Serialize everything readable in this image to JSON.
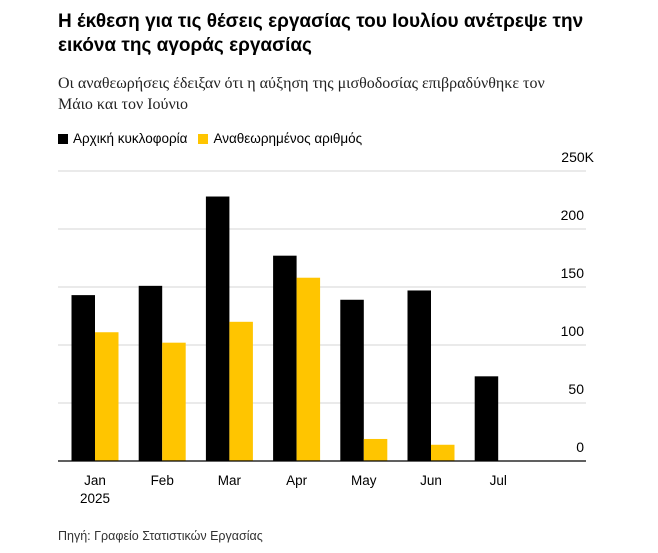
{
  "chart_data": {
    "type": "bar",
    "title": "Η έκθεση για τις θέσεις εργασίας του Ιουλίου ανέτρεψε την εικόνα της αγοράς εργασίας",
    "subtitle": "Οι αναθεωρήσεις έδειξαν ότι η αύξηση της μισθοδοσίας επιβραδύνθηκε τον Μάιο και τον Ιούνιο",
    "source": "Πηγή: Γραφείο Στατιστικών Εργασίας",
    "categories": [
      "Jan",
      "Feb",
      "Mar",
      "Apr",
      "May",
      "Jun",
      "Jul"
    ],
    "category_sublabels": [
      "2025",
      "",
      "",
      "",
      "",
      "",
      ""
    ],
    "series": [
      {
        "name": "Αρχική κυκλοφορία",
        "color": "#000000",
        "values": [
          143,
          151,
          228,
          177,
          139,
          147,
          73
        ]
      },
      {
        "name": "Αναθεωρημένος αριθμός",
        "color": "#FFC500",
        "values": [
          111,
          102,
          120,
          158,
          19,
          14,
          null
        ]
      }
    ],
    "y_ticks": [
      0,
      50,
      100,
      150,
      200,
      250
    ],
    "y_tick_labels": [
      "0",
      "50",
      "100",
      "150",
      "200",
      "250K"
    ],
    "ylim": [
      0,
      250
    ],
    "xlabel": "",
    "ylabel": "",
    "y_axis_side": "right",
    "grid": true,
    "legend_placement": "top-left"
  }
}
